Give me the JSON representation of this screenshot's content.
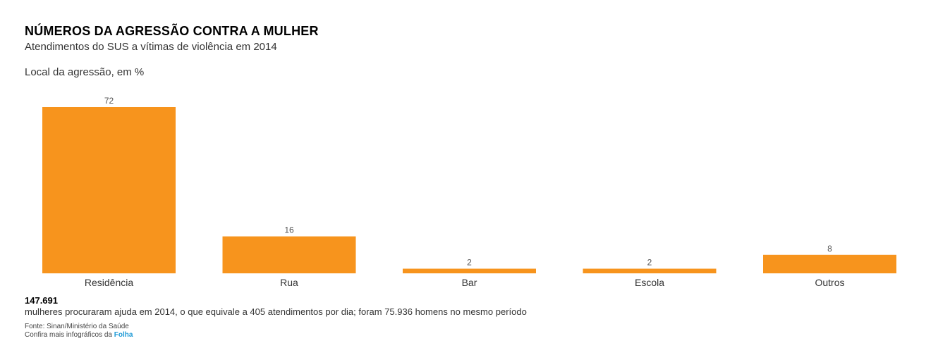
{
  "header": {
    "title": "NÚMEROS DA AGRESSÃO CONTRA A MULHER",
    "subtitle": "Atendimentos do SUS a vítimas de violência em 2014"
  },
  "chart_data": {
    "type": "bar",
    "title": "Local da agressão, em %",
    "categories": [
      "Residência",
      "Rua",
      "Bar",
      "Escola",
      "Outros"
    ],
    "values": [
      72,
      16,
      2,
      2,
      8
    ],
    "ylim": [
      0,
      72
    ],
    "grid": false,
    "bar_color": "#f7941d",
    "xlabel": "",
    "ylabel": ""
  },
  "stat": {
    "number": "147.691",
    "text": "mulheres procuraram ajuda em 2014, o que equivale a 405 atendimentos por dia; foram 75.936 homens no mesmo período"
  },
  "footer": {
    "source": "Fonte: Sinan/Ministério da Saúde",
    "more_prefix": "Confira mais infográficos da",
    "brand_link": "Folha",
    "link_color": "#1f9ad6"
  }
}
